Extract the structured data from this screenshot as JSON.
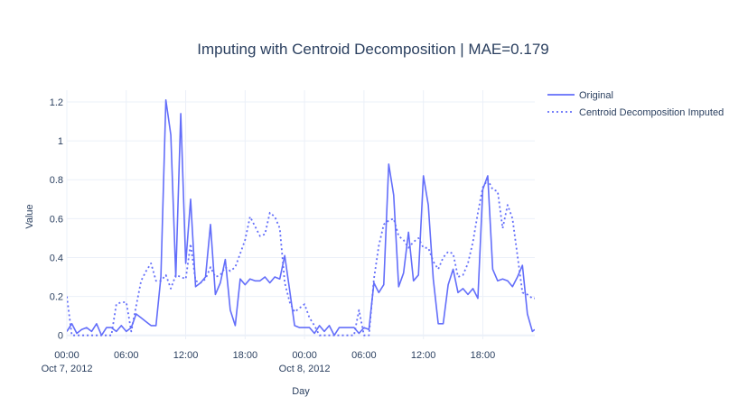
{
  "chart_data": {
    "type": "line",
    "title": "Imputing with Centroid Decomposition | MAE=0.179",
    "xlabel": "Day",
    "ylabel": "Value",
    "x_unit": "hours since Oct 7, 2012 00:00",
    "xlim": [
      0,
      47.25
    ],
    "ylim": [
      -0.02,
      1.26
    ],
    "x_ticks": [
      {
        "x": 0,
        "label": "00:00",
        "sub": "Oct 7, 2012"
      },
      {
        "x": 6,
        "label": "06:00",
        "sub": ""
      },
      {
        "x": 12,
        "label": "12:00",
        "sub": ""
      },
      {
        "x": 18,
        "label": "18:00",
        "sub": ""
      },
      {
        "x": 24,
        "label": "00:00",
        "sub": "Oct 8, 2012"
      },
      {
        "x": 30,
        "label": "06:00",
        "sub": ""
      },
      {
        "x": 36,
        "label": "12:00",
        "sub": ""
      },
      {
        "x": 42,
        "label": "18:00",
        "sub": ""
      }
    ],
    "y_ticks": [
      {
        "y": 0,
        "label": "0"
      },
      {
        "y": 0.2,
        "label": "0.2"
      },
      {
        "y": 0.4,
        "label": "0.4"
      },
      {
        "y": 0.6,
        "label": "0.6"
      },
      {
        "y": 0.8,
        "label": "0.8"
      },
      {
        "y": 1.0,
        "label": "1"
      },
      {
        "y": 1.2,
        "label": "1.2"
      }
    ],
    "grid": true,
    "legend_position": "top-right",
    "series": [
      {
        "name": "Original",
        "color": "#636efa",
        "dash": "solid",
        "x": [
          0,
          0.5,
          1,
          1.5,
          2,
          2.5,
          3,
          3.5,
          4,
          4.5,
          5,
          5.5,
          6,
          6.5,
          7,
          7.5,
          8,
          8.5,
          9,
          9.5,
          10,
          10.5,
          11,
          11.5,
          12,
          12.5,
          13,
          13.5,
          14,
          14.5,
          15,
          15.5,
          16,
          16.5,
          17,
          17.5,
          18,
          18.5,
          19,
          19.5,
          20,
          20.5,
          21,
          21.5,
          22,
          22.5,
          23,
          23.5,
          24,
          24.5,
          25,
          25.5,
          26,
          26.5,
          27,
          27.5,
          28,
          28.5,
          29,
          29.5,
          30,
          30.5,
          31,
          31.5,
          32,
          32.5,
          33,
          33.5,
          34,
          34.5,
          35,
          35.5,
          36,
          36.5,
          37,
          37.5,
          38,
          38.5,
          39,
          39.5,
          40,
          40.5,
          41,
          41.5,
          42,
          42.5,
          43,
          43.5,
          44,
          44.5,
          45,
          45.5,
          46,
          46.5,
          47,
          47.25
        ],
        "values": [
          0.02,
          0.06,
          0.01,
          0.03,
          0.04,
          0.02,
          0.06,
          0.0,
          0.04,
          0.04,
          0.02,
          0.05,
          0.02,
          0.04,
          0.11,
          0.09,
          0.07,
          0.05,
          0.05,
          0.3,
          1.21,
          1.03,
          0.3,
          1.14,
          0.37,
          0.7,
          0.25,
          0.27,
          0.3,
          0.57,
          0.21,
          0.27,
          0.39,
          0.13,
          0.05,
          0.29,
          0.26,
          0.29,
          0.28,
          0.28,
          0.3,
          0.27,
          0.3,
          0.29,
          0.41,
          0.23,
          0.05,
          0.04,
          0.04,
          0.04,
          0.01,
          0.05,
          0.02,
          0.05,
          0.0,
          0.04,
          0.04,
          0.04,
          0.04,
          0.01,
          0.04,
          0.03,
          0.27,
          0.22,
          0.26,
          0.88,
          0.72,
          0.25,
          0.32,
          0.53,
          0.28,
          0.31,
          0.82,
          0.67,
          0.29,
          0.06,
          0.06,
          0.26,
          0.34,
          0.22,
          0.24,
          0.21,
          0.24,
          0.19,
          0.75,
          0.82,
          0.34,
          0.28,
          0.29,
          0.28,
          0.25,
          0.3,
          0.36,
          0.11,
          0.02,
          0.03
        ]
      },
      {
        "name": "Centroid Decomposition Imputed",
        "color": "#636efa",
        "dash": "dot",
        "x": [
          0,
          0.5,
          1,
          1.5,
          2,
          2.5,
          3,
          3.5,
          4,
          4.5,
          5,
          5.5,
          6,
          6.5,
          7,
          7.5,
          8,
          8.5,
          9,
          9.5,
          10,
          10.5,
          11,
          11.5,
          12,
          12.5,
          13,
          13.5,
          14,
          14.5,
          15,
          15.5,
          16,
          16.5,
          17,
          17.5,
          18,
          18.5,
          19,
          19.5,
          20,
          20.5,
          21,
          21.5,
          22,
          22.5,
          23,
          23.5,
          24,
          24.5,
          25,
          25.5,
          26,
          26.5,
          27,
          27.5,
          28,
          28.5,
          29,
          29.5,
          30,
          30.5,
          31,
          31.5,
          32,
          32.5,
          33,
          33.5,
          34,
          34.5,
          35,
          35.5,
          36,
          36.5,
          37,
          37.5,
          38,
          38.5,
          39,
          39.5,
          40,
          40.5,
          41,
          41.5,
          42,
          42.5,
          43,
          43.5,
          44,
          44.5,
          45,
          45.5,
          46,
          46.5,
          47,
          47.25
        ],
        "values": [
          0.2,
          0.0,
          0.0,
          0.0,
          0.0,
          0.0,
          0.0,
          0.0,
          0.0,
          0.0,
          0.16,
          0.17,
          0.17,
          0.02,
          0.15,
          0.28,
          0.33,
          0.37,
          0.28,
          0.28,
          0.31,
          0.24,
          0.31,
          0.3,
          0.29,
          0.47,
          0.28,
          0.27,
          0.29,
          0.35,
          0.3,
          0.31,
          0.35,
          0.33,
          0.35,
          0.42,
          0.49,
          0.61,
          0.56,
          0.51,
          0.52,
          0.63,
          0.61,
          0.55,
          0.27,
          0.17,
          0.12,
          0.14,
          0.16,
          0.09,
          0.05,
          0.0,
          0.0,
          0.0,
          0.0,
          0.0,
          0.0,
          0.0,
          0.0,
          0.13,
          0.0,
          0.0,
          0.29,
          0.46,
          0.57,
          0.59,
          0.6,
          0.51,
          0.49,
          0.45,
          0.48,
          0.5,
          0.45,
          0.45,
          0.38,
          0.34,
          0.4,
          0.43,
          0.42,
          0.3,
          0.31,
          0.37,
          0.48,
          0.63,
          0.76,
          0.8,
          0.75,
          0.74,
          0.55,
          0.67,
          0.6,
          0.41,
          0.22,
          0.21,
          0.19,
          0.19
        ]
      }
    ]
  }
}
